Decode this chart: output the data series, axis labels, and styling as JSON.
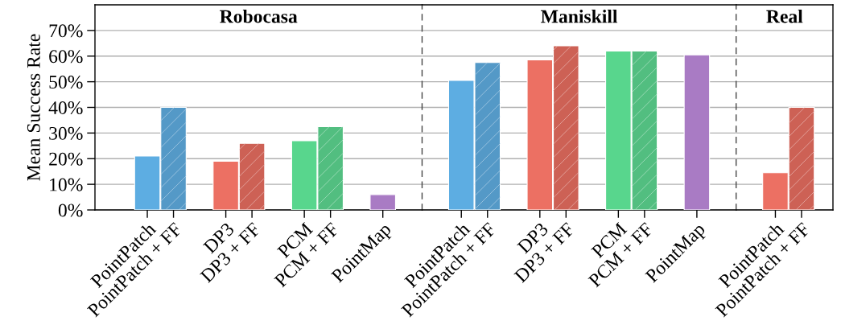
{
  "chart_data": [
    {
      "type": "bar",
      "title": "Robocasa",
      "ylabel": "Mean Success Rate",
      "ylim": [
        0,
        80
      ],
      "yticks": [
        {
          "value": 0,
          "label": "0%"
        },
        {
          "value": 10,
          "label": "10%"
        },
        {
          "value": 20,
          "label": "20%"
        },
        {
          "value": 30,
          "label": "30%"
        },
        {
          "value": 40,
          "label": "40%"
        },
        {
          "value": 50,
          "label": "50%"
        },
        {
          "value": 60,
          "label": "60%"
        },
        {
          "value": 70,
          "label": "70%"
        }
      ],
      "categories": [
        "PointPatch",
        "PointPatch + FF",
        null,
        "DP3",
        "DP3 + FF",
        null,
        "PCM",
        "PCM + FF",
        null,
        "PointMap"
      ],
      "series": [
        {
          "values": [
            21,
            null,
            null,
            19,
            null,
            null,
            27,
            null,
            null,
            6
          ],
          "colors": [
            "#5dade2",
            null,
            null,
            "#ec7063",
            null,
            null,
            "#58d68d",
            null,
            null,
            "#a97bc4"
          ]
        },
        {
          "values": [
            null,
            40,
            null,
            null,
            26,
            null,
            null,
            32.5,
            null,
            null
          ],
          "colors": [
            null,
            "#5499c7",
            null,
            null,
            "#cd6155",
            null,
            null,
            "#52be80",
            null,
            null
          ]
        }
      ],
      "grid": "y"
    },
    {
      "type": "bar",
      "title": "Maniskill",
      "ylim": [
        0,
        80
      ],
      "tick_labels": "x",
      "yticks": [
        0,
        10,
        20,
        30,
        40,
        50,
        60,
        70
      ],
      "categories": [
        "PointPatch",
        "PointPatch + FF",
        null,
        "DP3",
        "DP3 + FF",
        null,
        "PCM",
        "PCM + FF",
        null,
        "PointMap"
      ],
      "series": [
        {
          "values": [
            50.5,
            null,
            null,
            58.5,
            null,
            null,
            62,
            null,
            null,
            60.5
          ],
          "colors": [
            "#5dade2",
            null,
            null,
            "#ec7063",
            null,
            null,
            "#58d68d",
            null,
            null,
            "#a97bc4"
          ]
        },
        {
          "values": [
            null,
            57.5,
            null,
            null,
            64,
            null,
            null,
            62,
            null,
            null
          ],
          "colors": [
            null,
            "#5499c7",
            null,
            null,
            "#cd6155",
            null,
            null,
            "#52be80",
            null,
            null
          ]
        }
      ],
      "grid": "y"
    },
    {
      "type": "bar",
      "title": "Real",
      "ylim": [
        0,
        80
      ],
      "tick_labels": "x",
      "yticks": [
        0,
        10,
        20,
        30,
        40,
        50,
        60,
        70
      ],
      "categories": [
        "PointPatch",
        "PointPatch + FF"
      ],
      "series": [
        {
          "values": [
            14.5,
            null
          ],
          "colors": [
            "#ec7063",
            null
          ]
        },
        {
          "values": [
            null,
            40
          ],
          "colors": [
            null,
            "#cd6155"
          ]
        }
      ],
      "grid": "y"
    }
  ]
}
